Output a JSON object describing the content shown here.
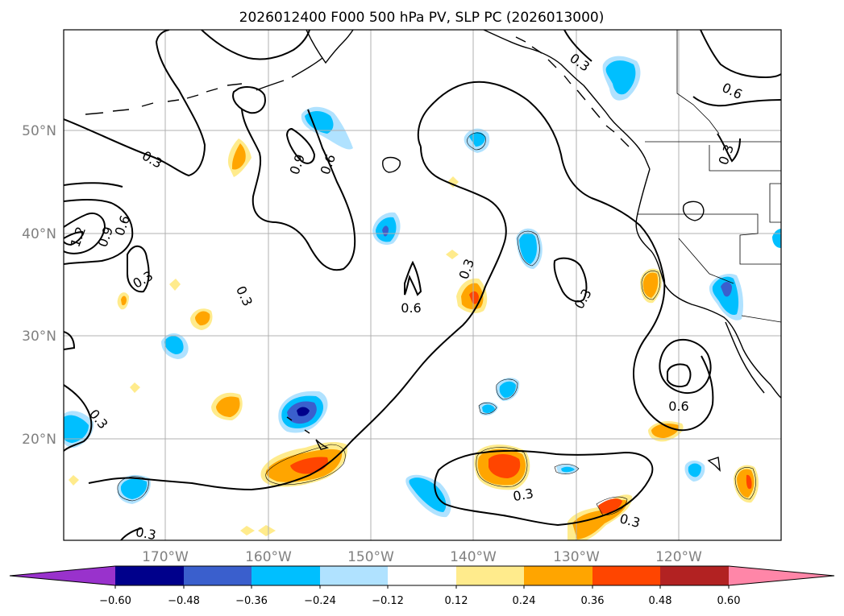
{
  "title": "2026012400 F000 500 hPa PV, SLP PC (2026013000)",
  "map": {
    "lon_labels": [
      "170°W",
      "160°W",
      "150°W",
      "140°W",
      "130°W",
      "120°W"
    ],
    "lat_labels": [
      "50°N",
      "40°N",
      "30°N",
      "20°N"
    ]
  },
  "colorbar": {
    "ticks": [
      "−0.60",
      "−0.48",
      "−0.36",
      "−0.24",
      "−0.12",
      "0.12",
      "0.24",
      "0.36",
      "0.48",
      "0.60"
    ],
    "colors": [
      "#9932cc",
      "#00008b",
      "#3a5fcd",
      "#00bfff",
      "#b0e2ff",
      "#ffffff",
      "#ffeb8c",
      "#ffa500",
      "#ff4500",
      "#b22222",
      "#ff86a8"
    ]
  },
  "contour_labels": [
    "0.3",
    "0.6",
    "0.9",
    "1.2"
  ],
  "contour_label_instances": [
    "0.3",
    "0.3",
    "0.3",
    "0.3",
    "0.3",
    "0.3",
    "0.3",
    "0.3",
    "0.3",
    "0.3",
    "0.3",
    "0.6",
    "0.6",
    "0.6",
    "0.6",
    "0.6",
    "0.9",
    "0.9",
    "1.2"
  ]
}
